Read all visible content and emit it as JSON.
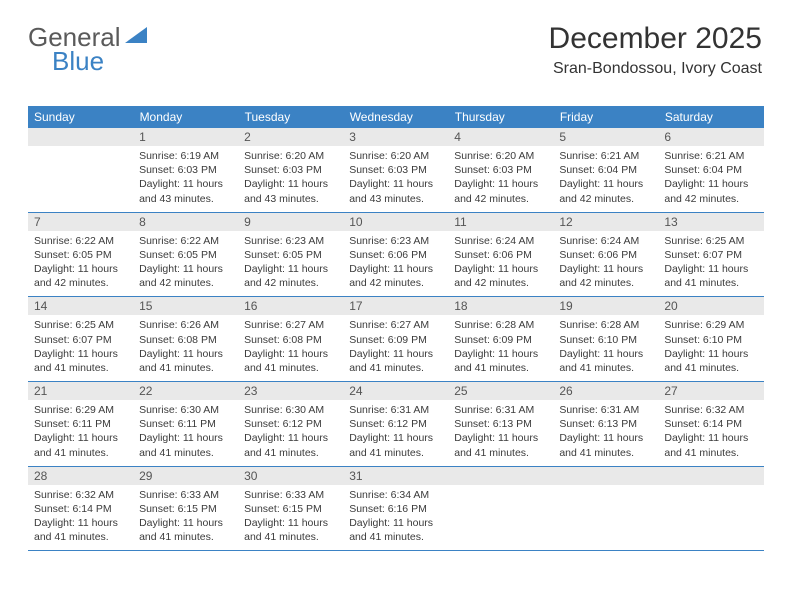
{
  "logo": {
    "text1": "General",
    "text2": "Blue"
  },
  "header": {
    "title": "December 2025",
    "subtitle": "Sran-Bondossou, Ivory Coast"
  },
  "colors": {
    "header_bg": "#3b82c4",
    "header_fg": "#ffffff",
    "daynum_bg": "#e9e9e9",
    "border": "#3b82c4",
    "text": "#3b3b3b",
    "logo_gray": "#5a5a5a",
    "logo_blue": "#3b82c4"
  },
  "weekdays": [
    "Sunday",
    "Monday",
    "Tuesday",
    "Wednesday",
    "Thursday",
    "Friday",
    "Saturday"
  ],
  "weeks": [
    {
      "nums": [
        "",
        "1",
        "2",
        "3",
        "4",
        "5",
        "6"
      ],
      "cells": [
        {
          "sunrise": "",
          "sunset": "",
          "daylight": ""
        },
        {
          "sunrise": "Sunrise: 6:19 AM",
          "sunset": "Sunset: 6:03 PM",
          "daylight": "Daylight: 11 hours and 43 minutes."
        },
        {
          "sunrise": "Sunrise: 6:20 AM",
          "sunset": "Sunset: 6:03 PM",
          "daylight": "Daylight: 11 hours and 43 minutes."
        },
        {
          "sunrise": "Sunrise: 6:20 AM",
          "sunset": "Sunset: 6:03 PM",
          "daylight": "Daylight: 11 hours and 43 minutes."
        },
        {
          "sunrise": "Sunrise: 6:20 AM",
          "sunset": "Sunset: 6:03 PM",
          "daylight": "Daylight: 11 hours and 42 minutes."
        },
        {
          "sunrise": "Sunrise: 6:21 AM",
          "sunset": "Sunset: 6:04 PM",
          "daylight": "Daylight: 11 hours and 42 minutes."
        },
        {
          "sunrise": "Sunrise: 6:21 AM",
          "sunset": "Sunset: 6:04 PM",
          "daylight": "Daylight: 11 hours and 42 minutes."
        }
      ]
    },
    {
      "nums": [
        "7",
        "8",
        "9",
        "10",
        "11",
        "12",
        "13"
      ],
      "cells": [
        {
          "sunrise": "Sunrise: 6:22 AM",
          "sunset": "Sunset: 6:05 PM",
          "daylight": "Daylight: 11 hours and 42 minutes."
        },
        {
          "sunrise": "Sunrise: 6:22 AM",
          "sunset": "Sunset: 6:05 PM",
          "daylight": "Daylight: 11 hours and 42 minutes."
        },
        {
          "sunrise": "Sunrise: 6:23 AM",
          "sunset": "Sunset: 6:05 PM",
          "daylight": "Daylight: 11 hours and 42 minutes."
        },
        {
          "sunrise": "Sunrise: 6:23 AM",
          "sunset": "Sunset: 6:06 PM",
          "daylight": "Daylight: 11 hours and 42 minutes."
        },
        {
          "sunrise": "Sunrise: 6:24 AM",
          "sunset": "Sunset: 6:06 PM",
          "daylight": "Daylight: 11 hours and 42 minutes."
        },
        {
          "sunrise": "Sunrise: 6:24 AM",
          "sunset": "Sunset: 6:06 PM",
          "daylight": "Daylight: 11 hours and 42 minutes."
        },
        {
          "sunrise": "Sunrise: 6:25 AM",
          "sunset": "Sunset: 6:07 PM",
          "daylight": "Daylight: 11 hours and 41 minutes."
        }
      ]
    },
    {
      "nums": [
        "14",
        "15",
        "16",
        "17",
        "18",
        "19",
        "20"
      ],
      "cells": [
        {
          "sunrise": "Sunrise: 6:25 AM",
          "sunset": "Sunset: 6:07 PM",
          "daylight": "Daylight: 11 hours and 41 minutes."
        },
        {
          "sunrise": "Sunrise: 6:26 AM",
          "sunset": "Sunset: 6:08 PM",
          "daylight": "Daylight: 11 hours and 41 minutes."
        },
        {
          "sunrise": "Sunrise: 6:27 AM",
          "sunset": "Sunset: 6:08 PM",
          "daylight": "Daylight: 11 hours and 41 minutes."
        },
        {
          "sunrise": "Sunrise: 6:27 AM",
          "sunset": "Sunset: 6:09 PM",
          "daylight": "Daylight: 11 hours and 41 minutes."
        },
        {
          "sunrise": "Sunrise: 6:28 AM",
          "sunset": "Sunset: 6:09 PM",
          "daylight": "Daylight: 11 hours and 41 minutes."
        },
        {
          "sunrise": "Sunrise: 6:28 AM",
          "sunset": "Sunset: 6:10 PM",
          "daylight": "Daylight: 11 hours and 41 minutes."
        },
        {
          "sunrise": "Sunrise: 6:29 AM",
          "sunset": "Sunset: 6:10 PM",
          "daylight": "Daylight: 11 hours and 41 minutes."
        }
      ]
    },
    {
      "nums": [
        "21",
        "22",
        "23",
        "24",
        "25",
        "26",
        "27"
      ],
      "cells": [
        {
          "sunrise": "Sunrise: 6:29 AM",
          "sunset": "Sunset: 6:11 PM",
          "daylight": "Daylight: 11 hours and 41 minutes."
        },
        {
          "sunrise": "Sunrise: 6:30 AM",
          "sunset": "Sunset: 6:11 PM",
          "daylight": "Daylight: 11 hours and 41 minutes."
        },
        {
          "sunrise": "Sunrise: 6:30 AM",
          "sunset": "Sunset: 6:12 PM",
          "daylight": "Daylight: 11 hours and 41 minutes."
        },
        {
          "sunrise": "Sunrise: 6:31 AM",
          "sunset": "Sunset: 6:12 PM",
          "daylight": "Daylight: 11 hours and 41 minutes."
        },
        {
          "sunrise": "Sunrise: 6:31 AM",
          "sunset": "Sunset: 6:13 PM",
          "daylight": "Daylight: 11 hours and 41 minutes."
        },
        {
          "sunrise": "Sunrise: 6:31 AM",
          "sunset": "Sunset: 6:13 PM",
          "daylight": "Daylight: 11 hours and 41 minutes."
        },
        {
          "sunrise": "Sunrise: 6:32 AM",
          "sunset": "Sunset: 6:14 PM",
          "daylight": "Daylight: 11 hours and 41 minutes."
        }
      ]
    },
    {
      "nums": [
        "28",
        "29",
        "30",
        "31",
        "",
        "",
        ""
      ],
      "cells": [
        {
          "sunrise": "Sunrise: 6:32 AM",
          "sunset": "Sunset: 6:14 PM",
          "daylight": "Daylight: 11 hours and 41 minutes."
        },
        {
          "sunrise": "Sunrise: 6:33 AM",
          "sunset": "Sunset: 6:15 PM",
          "daylight": "Daylight: 11 hours and 41 minutes."
        },
        {
          "sunrise": "Sunrise: 6:33 AM",
          "sunset": "Sunset: 6:15 PM",
          "daylight": "Daylight: 11 hours and 41 minutes."
        },
        {
          "sunrise": "Sunrise: 6:34 AM",
          "sunset": "Sunset: 6:16 PM",
          "daylight": "Daylight: 11 hours and 41 minutes."
        },
        {
          "sunrise": "",
          "sunset": "",
          "daylight": ""
        },
        {
          "sunrise": "",
          "sunset": "",
          "daylight": ""
        },
        {
          "sunrise": "",
          "sunset": "",
          "daylight": ""
        }
      ]
    }
  ]
}
